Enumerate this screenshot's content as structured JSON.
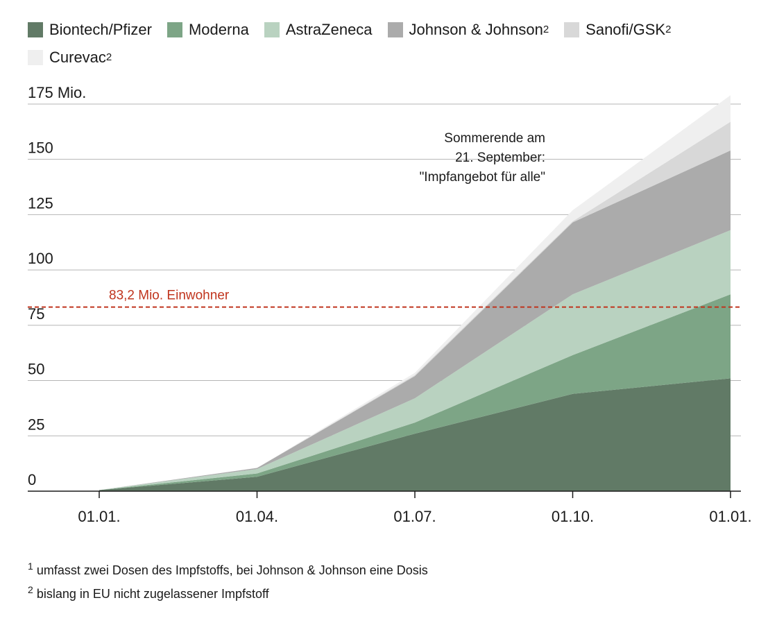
{
  "legend": [
    {
      "label": "Biontech/Pfizer",
      "sup": "",
      "color": "#617a66"
    },
    {
      "label": "Moderna",
      "sup": "",
      "color": "#7da586"
    },
    {
      "label": "AstraZeneca",
      "sup": "",
      "color": "#b9d2c0"
    },
    {
      "label": "Johnson & Johnson",
      "sup": "2",
      "color": "#ababab"
    },
    {
      "label": "Sanofi/GSK",
      "sup": "2",
      "color": "#d8d8d8"
    },
    {
      "label": "Curevac",
      "sup": "2",
      "color": "#efefef"
    }
  ],
  "annotation": {
    "line1": "Sommerende am",
    "line2": "21. September:",
    "line3": "\"Impfangebot für alle\""
  },
  "footnotes": [
    {
      "sup": "1",
      "text": "umfasst zwei Dosen des Impfstoffs, bei Johnson & Johnson eine Dosis"
    },
    {
      "sup": "2",
      "text": "bislang in EU nicht zugelassener Impfstoff"
    }
  ],
  "chart_data": {
    "type": "area",
    "stacked": true,
    "x": [
      "01.01.",
      "01.04.",
      "01.07.",
      "01.10.",
      "01.01."
    ],
    "x_tick_labels": [
      "01.01.",
      "01.04.",
      "01.07.",
      "01.10.",
      "01.01."
    ],
    "y_tick_labels": [
      "0",
      "25",
      "50",
      "75",
      "100",
      "125",
      "150",
      "175 Mio."
    ],
    "y_ticks": [
      0,
      25,
      50,
      75,
      100,
      125,
      150,
      175
    ],
    "ylim": [
      0,
      180
    ],
    "grid": true,
    "legend_position": "top",
    "series": [
      {
        "name": "Biontech/Pfizer",
        "color": "#617a66",
        "values": [
          0.5,
          6.5,
          26,
          44,
          51
        ]
      },
      {
        "name": "Moderna",
        "color": "#7da586",
        "values": [
          0,
          1.5,
          5,
          17.5,
          38
        ]
      },
      {
        "name": "AstraZeneca",
        "color": "#b9d2c0",
        "values": [
          0,
          2,
          11,
          27.5,
          29
        ]
      },
      {
        "name": "Johnson & Johnson",
        "color": "#ababab",
        "values": [
          0,
          0.5,
          10,
          32.5,
          36
        ]
      },
      {
        "name": "Sanofi/GSK",
        "color": "#d8d8d8",
        "values": [
          0,
          0,
          0.5,
          0.5,
          13
        ]
      },
      {
        "name": "Curevac",
        "color": "#efefef",
        "values": [
          0,
          0,
          1,
          5,
          12
        ]
      }
    ],
    "reference_line": {
      "value": 83.2,
      "label": "83,2 Mio. Einwohner",
      "color": "#c0341d"
    }
  }
}
